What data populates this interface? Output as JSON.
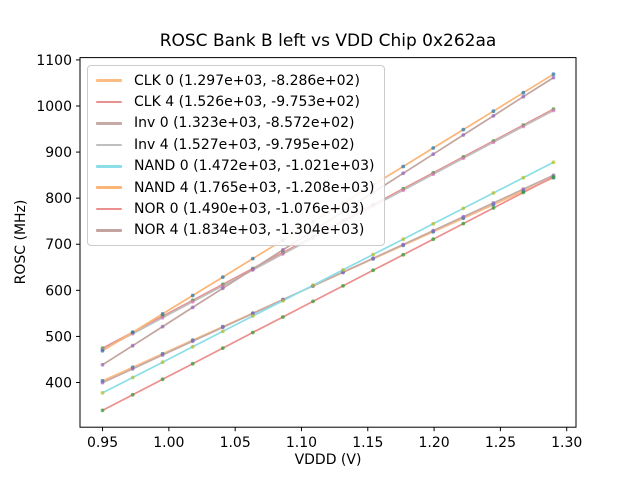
{
  "chart_data": {
    "type": "line",
    "title": "ROSC Bank B left vs VDD Chip 0x262aa",
    "xlabel": "VDDD (V)",
    "ylabel": "ROSC (MHz)",
    "xlim": [
      0.933,
      1.307
    ],
    "ylim": [
      303,
      1105
    ],
    "x_ticks": [
      0.95,
      1.0,
      1.05,
      1.1,
      1.15,
      1.2,
      1.25,
      1.3
    ],
    "y_ticks": [
      400,
      500,
      600,
      700,
      800,
      900,
      1000,
      1100
    ],
    "grid": false,
    "legend_position": "upper left",
    "x": [
      0.95,
      0.9727,
      0.9953,
      1.018,
      1.0407,
      1.0633,
      1.086,
      1.1087,
      1.1313,
      1.154,
      1.1767,
      1.1993,
      1.222,
      1.2447,
      1.2673,
      1.29
    ],
    "series": [
      {
        "name": "CLK 0",
        "label": "CLK 0 (1.297e+03, -8.286e+02)",
        "slope": 1297.0,
        "intercept": -828.6,
        "line_color": "#fcbd84",
        "marker_color": "#1f77b4",
        "y": [
          403.6,
          433.0,
          462.3,
          491.7,
          521.1,
          550.5,
          579.9,
          609.3,
          638.7,
          668.1,
          697.5,
          726.9,
          756.3,
          785.7,
          815.1,
          844.5
        ]
      },
      {
        "name": "CLK 4",
        "label": "CLK 4 (1.526e+03, -9.753e+02)",
        "slope": 1526.0,
        "intercept": -975.3,
        "line_color": "#e89191",
        "marker_color": "#2ca02c",
        "y": [
          474.4,
          509.0,
          543.6,
          578.2,
          612.8,
          647.3,
          681.9,
          716.5,
          751.1,
          785.7,
          820.3,
          854.9,
          889.5,
          924.0,
          958.6,
          993.2
        ]
      },
      {
        "name": "Inv 0",
        "label": "Inv 0 (1.323e+03, -8.572e+02)",
        "slope": 1323.0,
        "intercept": -857.2,
        "line_color": "#c5aaa5",
        "marker_color": "#9467bd",
        "y": [
          399.7,
          429.6,
          459.6,
          489.6,
          519.6,
          549.6,
          579.6,
          609.6,
          639.6,
          669.6,
          699.5,
          729.5,
          759.5,
          789.5,
          819.5,
          849.5
        ]
      },
      {
        "name": "Inv 4",
        "label": "Inv 4 (1.527e+03, -9.795e+02)",
        "slope": 1527.0,
        "intercept": -979.5,
        "line_color": "#bfbfbf",
        "marker_color": "#e377c2",
        "y": [
          471.2,
          505.8,
          540.4,
          575.0,
          609.6,
          644.2,
          678.8,
          713.4,
          748.0,
          782.7,
          817.3,
          851.9,
          886.5,
          921.1,
          955.7,
          990.3
        ]
      },
      {
        "name": "NAND 0",
        "label": "NAND 0 (1.472e+03, -1.021e+03)",
        "slope": 1472.0,
        "intercept": -1021.0,
        "line_color": "#8bdee7",
        "marker_color": "#bcbd22",
        "y": [
          377.4,
          410.8,
          444.1,
          477.5,
          510.9,
          544.2,
          577.6,
          610.9,
          644.3,
          677.7,
          711.0,
          744.4,
          777.7,
          811.1,
          844.5,
          877.9
        ]
      },
      {
        "name": "NAND 4",
        "label": "NAND 4 (1.765e+03, -1.208e+03)",
        "slope": 1765.0,
        "intercept": -1208.0,
        "line_color": "#fbb576",
        "marker_color": "#1f77b4",
        "y": [
          468.8,
          508.8,
          548.8,
          588.8,
          628.8,
          668.8,
          708.8,
          748.8,
          788.8,
          828.8,
          868.8,
          908.8,
          948.8,
          988.8,
          1028.8,
          1068.9
        ]
      },
      {
        "name": "NOR 0",
        "label": "NOR 0 (1.490e+03, -1.076e+03)",
        "slope": 1490.0,
        "intercept": -1076.0,
        "line_color": "#ec8f8f",
        "marker_color": "#2ca02c",
        "y": [
          339.5,
          373.3,
          407.0,
          440.8,
          474.6,
          508.4,
          542.1,
          575.9,
          609.7,
          643.5,
          677.2,
          711.0,
          744.8,
          778.6,
          812.3,
          846.1
        ]
      },
      {
        "name": "NOR 4",
        "label": "NOR 4 (1.834e+03, -1.304e+03)",
        "slope": 1834.0,
        "intercept": -1304.0,
        "line_color": "#c3a49e",
        "marker_color": "#9467bd",
        "y": [
          438.3,
          479.9,
          521.4,
          563.0,
          604.5,
          646.1,
          687.7,
          729.2,
          770.8,
          812.3,
          853.9,
          895.4,
          937.0,
          978.6,
          1020.1,
          1061.7
        ]
      }
    ]
  },
  "colors": {
    "background": "#ffffff",
    "spine": "#000000",
    "tick_label": "#000000",
    "legend_border": "#cccccc"
  }
}
